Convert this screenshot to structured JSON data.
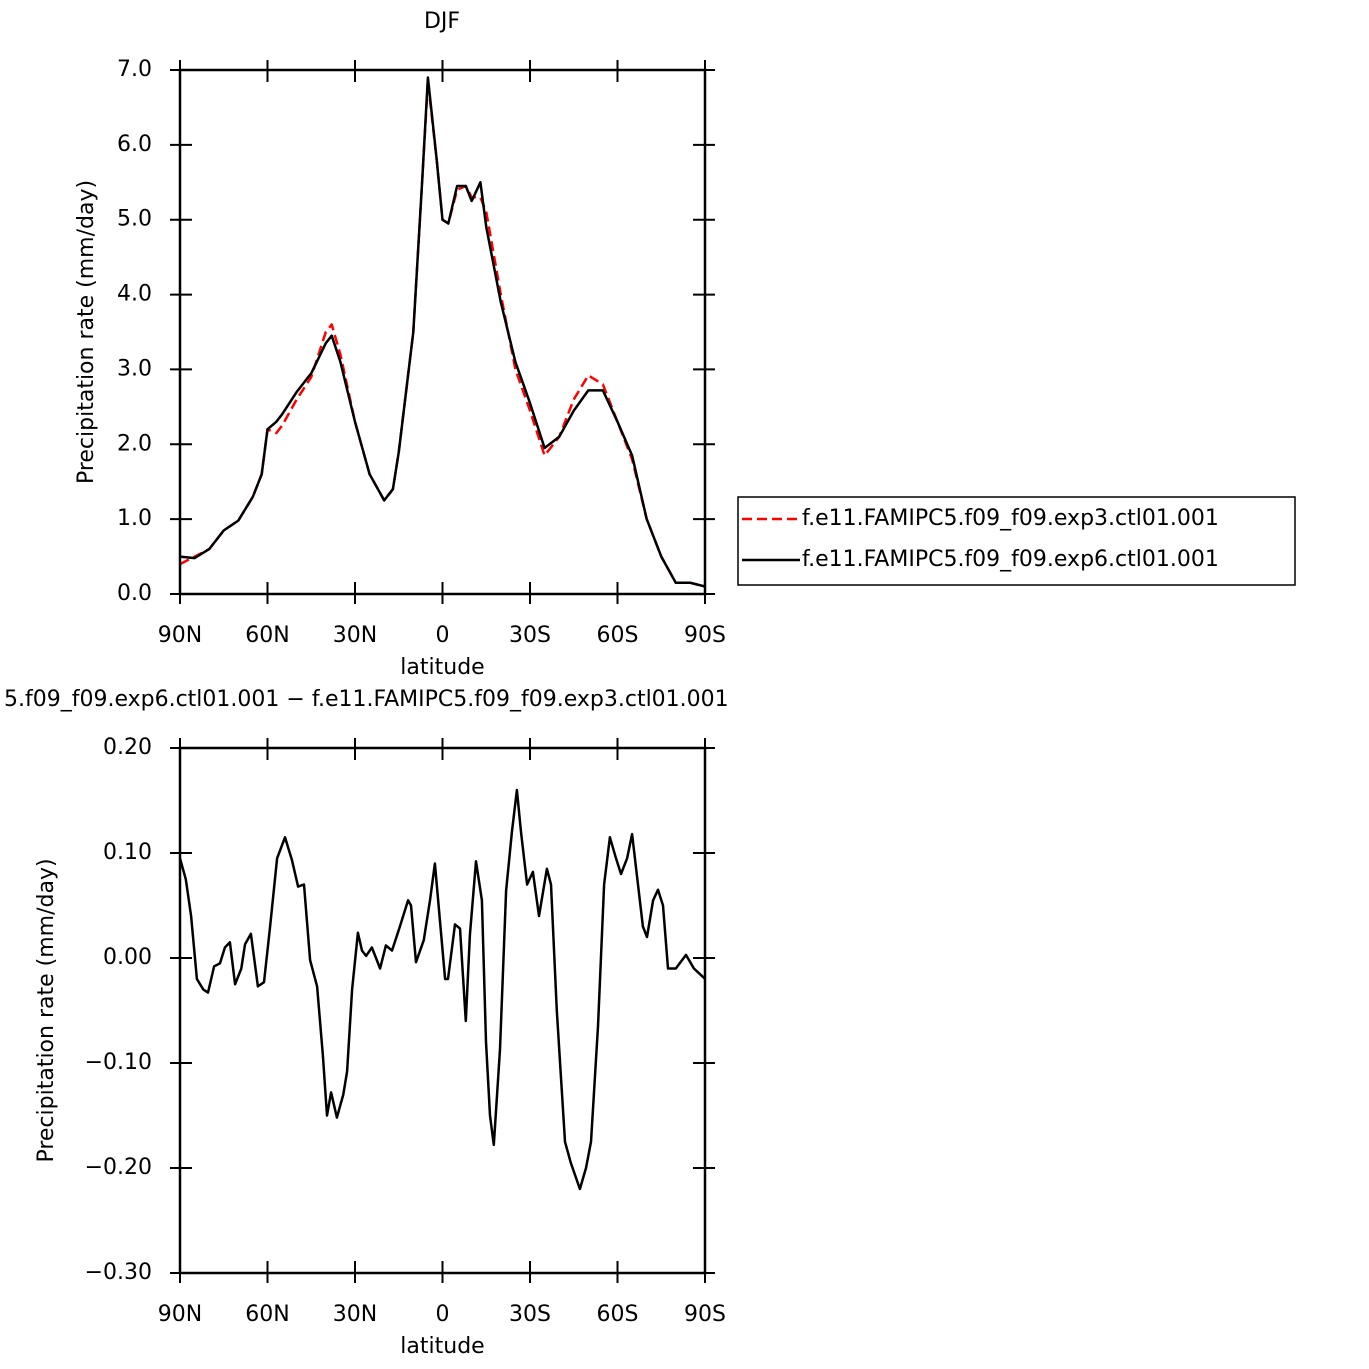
{
  "chart_data": [
    {
      "type": "line",
      "title": "DJF",
      "xlabel": "latitude",
      "ylabel": "Precipitation rate (mm/day)",
      "x": [
        90,
        85,
        80,
        75,
        70,
        65,
        62,
        60,
        57,
        55,
        50,
        45,
        40,
        38,
        35,
        30,
        25,
        20,
        17,
        15,
        10,
        7,
        5,
        2,
        0,
        -2,
        -5,
        -8,
        -10,
        -13,
        -15,
        -20,
        -25,
        -30,
        -35,
        -40,
        -45,
        -50,
        -55,
        -60,
        -65,
        -70,
        -75,
        -80,
        -85,
        -90
      ],
      "series": [
        {
          "name": "f.e11.FAMIPC5.f09_f09.exp3.ctl01.001",
          "color": "#ff0000",
          "dash": true,
          "values": [
            0.4,
            0.5,
            0.6,
            0.85,
            0.98,
            1.3,
            1.6,
            2.2,
            2.15,
            2.25,
            2.6,
            2.9,
            3.5,
            3.6,
            3.2,
            2.3,
            1.6,
            1.25,
            1.4,
            1.9,
            3.5,
            5.5,
            6.85,
            5.8,
            5.0,
            4.95,
            5.4,
            5.45,
            5.3,
            5.3,
            5.1,
            4.0,
            3.0,
            2.45,
            1.85,
            2.1,
            2.6,
            2.92,
            2.8,
            2.3,
            1.8,
            1.0,
            0.5,
            0.15,
            0.15,
            0.1
          ]
        },
        {
          "name": "f.e11.FAMIPC5.f09_f09.exp6.ctl01.001",
          "color": "#000000",
          "dash": false,
          "values": [
            0.5,
            0.48,
            0.6,
            0.85,
            0.98,
            1.3,
            1.6,
            2.2,
            2.3,
            2.4,
            2.7,
            2.95,
            3.35,
            3.45,
            3.1,
            2.3,
            1.6,
            1.25,
            1.4,
            1.9,
            3.5,
            5.5,
            6.9,
            5.8,
            5.0,
            4.95,
            5.45,
            5.45,
            5.25,
            5.5,
            4.9,
            3.9,
            3.1,
            2.55,
            1.95,
            2.1,
            2.45,
            2.72,
            2.72,
            2.3,
            1.85,
            1.0,
            0.5,
            0.15,
            0.15,
            0.1
          ]
        }
      ],
      "xlim": [
        90,
        -90
      ],
      "xticks": [
        {
          "value": 90,
          "label": "90N"
        },
        {
          "value": 60,
          "label": "60N"
        },
        {
          "value": 30,
          "label": "30N"
        },
        0,
        {
          "value": -30,
          "label": "30S"
        },
        {
          "value": -60,
          "label": "60S"
        },
        {
          "value": -90,
          "label": "90S"
        }
      ],
      "ylim": [
        0,
        7
      ],
      "yticks": [
        {
          "value": 0,
          "label": "0.0"
        },
        {
          "value": 1,
          "label": "1.0"
        },
        {
          "value": 2,
          "label": "2.0"
        },
        {
          "value": 3,
          "label": "3.0"
        },
        {
          "value": 4,
          "label": "4.0"
        },
        {
          "value": 5,
          "label": "5.0"
        },
        {
          "value": 6,
          "label": "6.0"
        },
        {
          "value": 7,
          "label": "7.0"
        }
      ],
      "legend": "right"
    },
    {
      "type": "line",
      "title": "5.f09_f09.exp6.ctl01.001 − f.e11.FAMIPC5.f09_f09.exp3.ctl01.001",
      "xlabel": "latitude",
      "ylabel": "Precipitation rate (mm/day)",
      "x": [
        90,
        88,
        86.2,
        84.2,
        82,
        80.4,
        78.3,
        76.3,
        74.6,
        72.9,
        71.1,
        69,
        67.7,
        65.7,
        63.3,
        61.2,
        59.1,
        56.7,
        54,
        51.6,
        49.5,
        47.5,
        45.4,
        43,
        41,
        39.6,
        38.2,
        36.2,
        34,
        32.7,
        31,
        29,
        27.6,
        26.2,
        24.2,
        21.4,
        19.4,
        17.3,
        14.6,
        11.8,
        10.8,
        9.1,
        6.4,
        4.3,
        2.6,
        0.9,
        -0.9,
        -1.9,
        -4.3,
        -6,
        -8,
        -9.4,
        -11.5,
        -13.5,
        -14.9,
        -16.3,
        -17.6,
        -19.7,
        -21.8,
        -23.8,
        -25.5,
        -26.9,
        -29,
        -31,
        -33.1,
        -35.8,
        -37.2,
        -39.2,
        -42,
        -44,
        -47.1,
        -49.2,
        -50.9,
        -53.3,
        -55.4,
        -57.4,
        -59.5,
        -61.2,
        -63.3,
        -65,
        -66.7,
        -68.7,
        -70.1,
        -72.2,
        -73.9,
        -75.6,
        -77.3,
        -80,
        -83.5,
        -86.2,
        -89.3,
        -90
      ],
      "series": [
        {
          "color": "#000000",
          "dash": false,
          "values": [
            0.095,
            0.075,
            0.04,
            -0.02,
            -0.03,
            -0.033,
            -0.008,
            -0.005,
            0.01,
            0.015,
            -0.025,
            -0.01,
            0.013,
            0.023,
            -0.027,
            -0.023,
            0.03,
            0.095,
            0.115,
            0.093,
            0.068,
            0.07,
            -0.002,
            -0.027,
            -0.093,
            -0.15,
            -0.128,
            -0.152,
            -0.13,
            -0.108,
            -0.03,
            0.024,
            0.007,
            0.002,
            0.01,
            -0.01,
            0.012,
            0.007,
            0.03,
            0.055,
            0.05,
            -0.004,
            0.017,
            0.055,
            0.09,
            0.036,
            -0.02,
            -0.02,
            0.032,
            0.028,
            -0.06,
            0.022,
            0.092,
            0.055,
            -0.08,
            -0.15,
            -0.178,
            -0.087,
            0.064,
            0.12,
            0.16,
            0.12,
            0.07,
            0.082,
            0.04,
            0.085,
            0.07,
            -0.05,
            -0.175,
            -0.195,
            -0.22,
            -0.2,
            -0.175,
            -0.065,
            0.07,
            0.115,
            0.095,
            0.08,
            0.095,
            0.118,
            0.078,
            0.03,
            0.02,
            0.055,
            0.065,
            0.05,
            -0.01,
            -0.01,
            0.003,
            -0.01,
            -0.018,
            -0.02
          ]
        }
      ],
      "xlim": [
        90,
        -90
      ],
      "xticks": [
        {
          "value": 90,
          "label": "90N"
        },
        {
          "value": 60,
          "label": "60N"
        },
        {
          "value": 30,
          "label": "30N"
        },
        0,
        {
          "value": -30,
          "label": "30S"
        },
        {
          "value": -60,
          "label": "60S"
        },
        {
          "value": -90,
          "label": "90S"
        }
      ],
      "ylim": [
        -0.3,
        0.2
      ],
      "yticks": [
        {
          "value": -0.3,
          "label": "−0.30"
        },
        {
          "value": -0.2,
          "label": "−0.20"
        },
        {
          "value": -0.1,
          "label": "−0.10"
        },
        {
          "value": 0,
          "label": "0.00"
        },
        {
          "value": 0.1,
          "label": "0.10"
        },
        {
          "value": 0.2,
          "label": "0.20"
        }
      ]
    }
  ]
}
